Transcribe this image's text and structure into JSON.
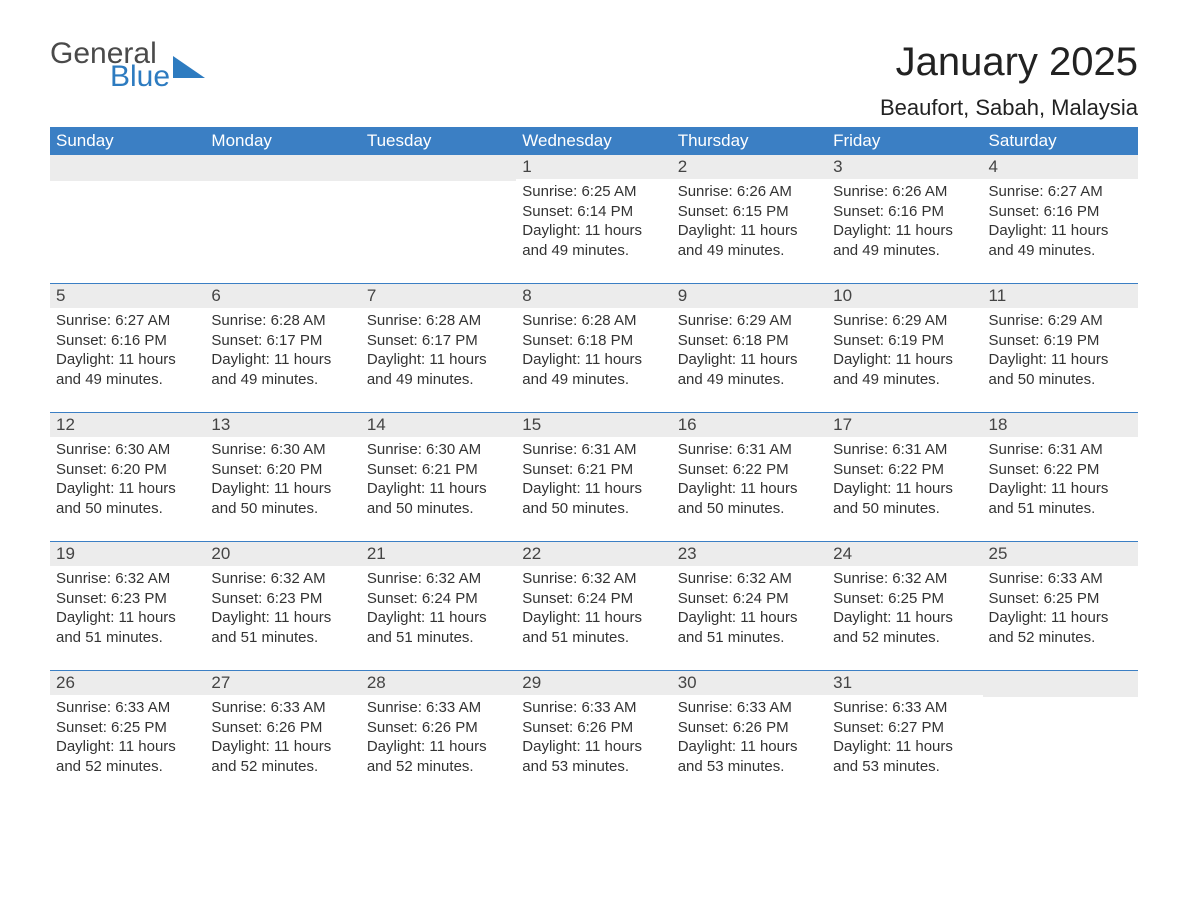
{
  "logo": {
    "part1": "General",
    "part2": "Blue"
  },
  "title": "January 2025",
  "location": "Beaufort, Sabah, Malaysia",
  "brand_color": "#3b7fc4",
  "header_text_color": "#ffffff",
  "daynum_bg": "#ececec",
  "body_text_color": "#333333",
  "font_family": "Arial, Helvetica, sans-serif",
  "title_fontsize": 40,
  "location_fontsize": 22,
  "header_fontsize": 17,
  "body_fontsize": 15,
  "days_of_week": [
    "Sunday",
    "Monday",
    "Tuesday",
    "Wednesday",
    "Thursday",
    "Friday",
    "Saturday"
  ],
  "weeks": [
    [
      null,
      null,
      null,
      {
        "n": "1",
        "sunrise": "6:25 AM",
        "sunset": "6:14 PM",
        "daylight": "11 hours and 49 minutes."
      },
      {
        "n": "2",
        "sunrise": "6:26 AM",
        "sunset": "6:15 PM",
        "daylight": "11 hours and 49 minutes."
      },
      {
        "n": "3",
        "sunrise": "6:26 AM",
        "sunset": "6:16 PM",
        "daylight": "11 hours and 49 minutes."
      },
      {
        "n": "4",
        "sunrise": "6:27 AM",
        "sunset": "6:16 PM",
        "daylight": "11 hours and 49 minutes."
      }
    ],
    [
      {
        "n": "5",
        "sunrise": "6:27 AM",
        "sunset": "6:16 PM",
        "daylight": "11 hours and 49 minutes."
      },
      {
        "n": "6",
        "sunrise": "6:28 AM",
        "sunset": "6:17 PM",
        "daylight": "11 hours and 49 minutes."
      },
      {
        "n": "7",
        "sunrise": "6:28 AM",
        "sunset": "6:17 PM",
        "daylight": "11 hours and 49 minutes."
      },
      {
        "n": "8",
        "sunrise": "6:28 AM",
        "sunset": "6:18 PM",
        "daylight": "11 hours and 49 minutes."
      },
      {
        "n": "9",
        "sunrise": "6:29 AM",
        "sunset": "6:18 PM",
        "daylight": "11 hours and 49 minutes."
      },
      {
        "n": "10",
        "sunrise": "6:29 AM",
        "sunset": "6:19 PM",
        "daylight": "11 hours and 49 minutes."
      },
      {
        "n": "11",
        "sunrise": "6:29 AM",
        "sunset": "6:19 PM",
        "daylight": "11 hours and 50 minutes."
      }
    ],
    [
      {
        "n": "12",
        "sunrise": "6:30 AM",
        "sunset": "6:20 PM",
        "daylight": "11 hours and 50 minutes."
      },
      {
        "n": "13",
        "sunrise": "6:30 AM",
        "sunset": "6:20 PM",
        "daylight": "11 hours and 50 minutes."
      },
      {
        "n": "14",
        "sunrise": "6:30 AM",
        "sunset": "6:21 PM",
        "daylight": "11 hours and 50 minutes."
      },
      {
        "n": "15",
        "sunrise": "6:31 AM",
        "sunset": "6:21 PM",
        "daylight": "11 hours and 50 minutes."
      },
      {
        "n": "16",
        "sunrise": "6:31 AM",
        "sunset": "6:22 PM",
        "daylight": "11 hours and 50 minutes."
      },
      {
        "n": "17",
        "sunrise": "6:31 AM",
        "sunset": "6:22 PM",
        "daylight": "11 hours and 50 minutes."
      },
      {
        "n": "18",
        "sunrise": "6:31 AM",
        "sunset": "6:22 PM",
        "daylight": "11 hours and 51 minutes."
      }
    ],
    [
      {
        "n": "19",
        "sunrise": "6:32 AM",
        "sunset": "6:23 PM",
        "daylight": "11 hours and 51 minutes."
      },
      {
        "n": "20",
        "sunrise": "6:32 AM",
        "sunset": "6:23 PM",
        "daylight": "11 hours and 51 minutes."
      },
      {
        "n": "21",
        "sunrise": "6:32 AM",
        "sunset": "6:24 PM",
        "daylight": "11 hours and 51 minutes."
      },
      {
        "n": "22",
        "sunrise": "6:32 AM",
        "sunset": "6:24 PM",
        "daylight": "11 hours and 51 minutes."
      },
      {
        "n": "23",
        "sunrise": "6:32 AM",
        "sunset": "6:24 PM",
        "daylight": "11 hours and 51 minutes."
      },
      {
        "n": "24",
        "sunrise": "6:32 AM",
        "sunset": "6:25 PM",
        "daylight": "11 hours and 52 minutes."
      },
      {
        "n": "25",
        "sunrise": "6:33 AM",
        "sunset": "6:25 PM",
        "daylight": "11 hours and 52 minutes."
      }
    ],
    [
      {
        "n": "26",
        "sunrise": "6:33 AM",
        "sunset": "6:25 PM",
        "daylight": "11 hours and 52 minutes."
      },
      {
        "n": "27",
        "sunrise": "6:33 AM",
        "sunset": "6:26 PM",
        "daylight": "11 hours and 52 minutes."
      },
      {
        "n": "28",
        "sunrise": "6:33 AM",
        "sunset": "6:26 PM",
        "daylight": "11 hours and 52 minutes."
      },
      {
        "n": "29",
        "sunrise": "6:33 AM",
        "sunset": "6:26 PM",
        "daylight": "11 hours and 53 minutes."
      },
      {
        "n": "30",
        "sunrise": "6:33 AM",
        "sunset": "6:26 PM",
        "daylight": "11 hours and 53 minutes."
      },
      {
        "n": "31",
        "sunrise": "6:33 AM",
        "sunset": "6:27 PM",
        "daylight": "11 hours and 53 minutes."
      },
      null
    ]
  ],
  "labels": {
    "sunrise": "Sunrise:",
    "sunset": "Sunset:",
    "daylight": "Daylight:"
  }
}
